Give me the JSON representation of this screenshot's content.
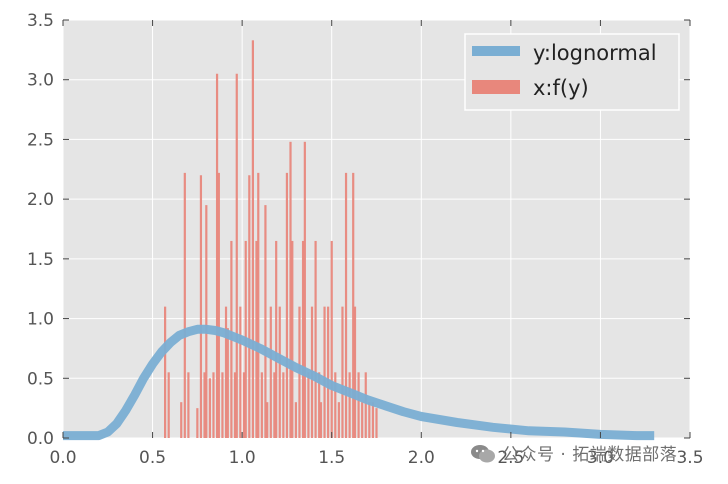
{
  "chart_data": {
    "type": "bar",
    "title": "",
    "xlabel": "",
    "ylabel": "",
    "xlim": [
      0.0,
      3.5
    ],
    "ylim": [
      0.0,
      3.5
    ],
    "xticks": [
      "0.0",
      "0.5",
      "1.0",
      "1.5",
      "2.0",
      "2.5",
      "3.0",
      "3.5"
    ],
    "yticks": [
      "0.0",
      "0.5",
      "1.0",
      "1.5",
      "2.0",
      "2.5",
      "3.0",
      "3.5"
    ],
    "grid": true,
    "background": "#e5e5e5",
    "legend_position": "top-right",
    "series": [
      {
        "name": "y:lognormal",
        "type": "line",
        "color": "#7aaed3",
        "x": [
          0.0,
          0.2,
          0.25,
          0.3,
          0.35,
          0.4,
          0.45,
          0.5,
          0.55,
          0.6,
          0.65,
          0.7,
          0.75,
          0.8,
          0.85,
          0.9,
          0.95,
          1.0,
          1.1,
          1.2,
          1.3,
          1.4,
          1.5,
          1.6,
          1.7,
          1.8,
          1.9,
          2.0,
          2.2,
          2.4,
          2.6,
          2.8,
          3.0,
          3.2,
          3.3
        ],
        "y": [
          0.02,
          0.02,
          0.05,
          0.12,
          0.23,
          0.36,
          0.5,
          0.62,
          0.72,
          0.8,
          0.86,
          0.89,
          0.91,
          0.91,
          0.9,
          0.88,
          0.85,
          0.82,
          0.75,
          0.67,
          0.59,
          0.52,
          0.44,
          0.38,
          0.32,
          0.27,
          0.22,
          0.18,
          0.13,
          0.09,
          0.06,
          0.05,
          0.03,
          0.02,
          0.02
        ]
      },
      {
        "name": "x:f(y)",
        "type": "hist",
        "color": "#e8877c",
        "x": [
          0.57,
          0.59,
          0.66,
          0.68,
          0.7,
          0.75,
          0.77,
          0.79,
          0.8,
          0.82,
          0.84,
          0.86,
          0.87,
          0.89,
          0.91,
          0.92,
          0.94,
          0.96,
          0.97,
          0.99,
          1.01,
          1.02,
          1.04,
          1.06,
          1.08,
          1.09,
          1.11,
          1.13,
          1.14,
          1.16,
          1.18,
          1.19,
          1.21,
          1.23,
          1.25,
          1.27,
          1.28,
          1.3,
          1.32,
          1.34,
          1.35,
          1.37,
          1.39,
          1.41,
          1.43,
          1.44,
          1.46,
          1.48,
          1.5,
          1.52,
          1.54,
          1.56,
          1.58,
          1.6,
          1.62,
          1.63,
          1.65,
          1.67,
          1.69,
          1.71,
          1.73,
          1.75
        ],
        "y": [
          1.1,
          0.55,
          0.3,
          2.22,
          0.55,
          0.25,
          2.2,
          0.55,
          1.95,
          0.5,
          0.55,
          3.05,
          2.22,
          0.55,
          1.1,
          0.92,
          1.65,
          0.55,
          3.05,
          1.1,
          0.55,
          1.65,
          2.2,
          3.33,
          1.65,
          2.22,
          0.55,
          1.95,
          0.3,
          1.1,
          0.55,
          1.65,
          1.1,
          0.55,
          2.22,
          2.48,
          1.65,
          0.3,
          1.1,
          1.65,
          2.48,
          0.55,
          1.1,
          1.65,
          0.55,
          0.3,
          1.1,
          1.1,
          1.65,
          0.55,
          0.3,
          1.1,
          2.22,
          0.55,
          2.22,
          1.1,
          0.55,
          0.3,
          0.55,
          0.3,
          0.3,
          0.25
        ]
      }
    ]
  },
  "watermark": {
    "text": "公众号 · 拓端数据部落",
    "icon": "wechat-icon"
  }
}
